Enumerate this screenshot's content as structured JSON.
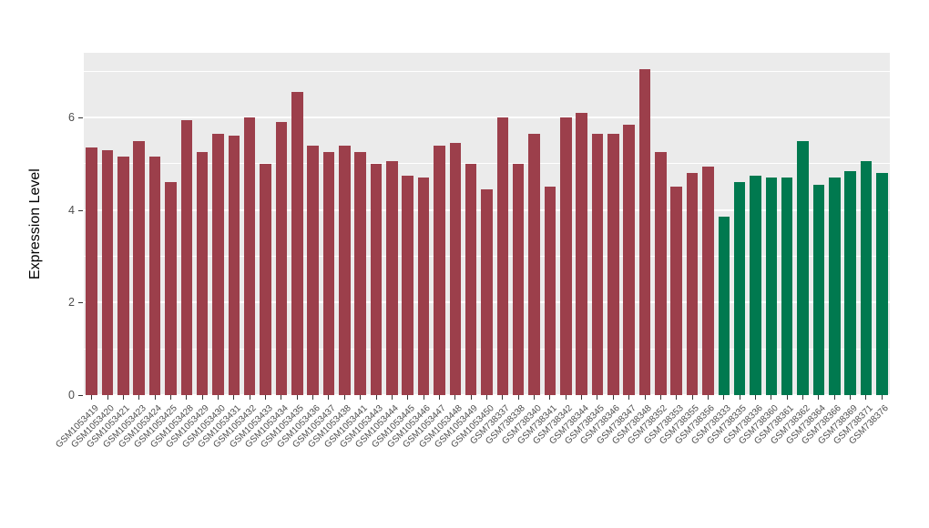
{
  "figure": {
    "ylabel": "Expression Level",
    "xlabel": "",
    "title": ""
  },
  "chart_data": {
    "type": "bar",
    "title": "",
    "xlabel": "",
    "ylabel": "Expression Level",
    "ylim": [
      0,
      7.4
    ],
    "yticks": [
      0,
      2,
      4,
      6
    ],
    "yticks_minor": [
      1,
      3,
      5,
      7
    ],
    "grid": "on",
    "legend_position": "none",
    "panel_bg": "#EBEBEB",
    "grid_color": "#FFFFFF",
    "categories": [
      "GSM1053419",
      "GSM1053420",
      "GSM1053421",
      "GSM1053423",
      "GSM1053424",
      "GSM1053425",
      "GSM1053428",
      "GSM1053429",
      "GSM1053430",
      "GSM1053431",
      "GSM1053432",
      "GSM1053433",
      "GSM1053434",
      "GSM1053435",
      "GSM1053436",
      "GSM1053437",
      "GSM1053438",
      "GSM1053441",
      "GSM1053443",
      "GSM1053444",
      "GSM1053445",
      "GSM1053446",
      "GSM1053447",
      "GSM1053448",
      "GSM1053449",
      "GSM1053450",
      "GSM738337",
      "GSM738338",
      "GSM738340",
      "GSM738341",
      "GSM738342",
      "GSM738344",
      "GSM738345",
      "GSM738346",
      "GSM738347",
      "GSM738348",
      "GSM738352",
      "GSM738353",
      "GSM738355",
      "GSM738356",
      "GSM738333",
      "GSM738335",
      "GSM738336",
      "GSM738360",
      "GSM738361",
      "GSM738362",
      "GSM738364",
      "GSM738366",
      "GSM738369",
      "GSM738371",
      "GSM738376"
    ],
    "values": [
      5.35,
      5.3,
      5.15,
      5.5,
      5.15,
      4.6,
      5.95,
      5.25,
      5.65,
      5.6,
      6.0,
      5.0,
      5.9,
      6.55,
      5.4,
      5.25,
      5.4,
      5.25,
      5.0,
      5.05,
      4.75,
      4.7,
      5.4,
      5.45,
      5.0,
      4.45,
      6.0,
      5.0,
      5.65,
      4.5,
      6.0,
      6.1,
      5.65,
      5.65,
      5.85,
      7.05,
      5.25,
      4.5,
      4.8,
      4.95,
      3.85,
      4.6,
      4.75,
      4.7,
      4.7,
      5.5,
      4.55,
      4.7,
      4.85,
      5.05,
      4.8
    ],
    "groups": [
      "group1",
      "group1",
      "group1",
      "group1",
      "group1",
      "group1",
      "group1",
      "group1",
      "group1",
      "group1",
      "group1",
      "group1",
      "group1",
      "group1",
      "group1",
      "group1",
      "group1",
      "group1",
      "group1",
      "group1",
      "group1",
      "group1",
      "group1",
      "group1",
      "group1",
      "group1",
      "group1",
      "group1",
      "group1",
      "group1",
      "group1",
      "group1",
      "group1",
      "group1",
      "group1",
      "group1",
      "group1",
      "group1",
      "group1",
      "group1",
      "group2",
      "group2",
      "group2",
      "group2",
      "group2",
      "group2",
      "group2",
      "group2",
      "group2",
      "group2",
      "group2"
    ],
    "group_colors": {
      "group1": "#9C3F4B",
      "group2": "#00794F"
    }
  }
}
